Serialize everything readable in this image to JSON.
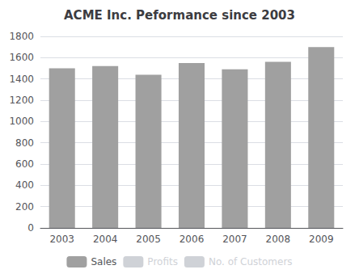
{
  "chart_data": {
    "type": "bar",
    "title": "ACME Inc. Peformance since 2003",
    "categories": [
      "2003",
      "2004",
      "2005",
      "2006",
      "2007",
      "2008",
      "2009"
    ],
    "series": [
      {
        "name": "Sales",
        "color": "#a0a0a0",
        "values": [
          1500,
          1520,
          1440,
          1550,
          1490,
          1560,
          1700
        ]
      },
      {
        "name": "Profits",
        "values": [
          null,
          null,
          null,
          null,
          null,
          null,
          null
        ]
      },
      {
        "name": "No. of Customers",
        "values": [
          null,
          null,
          null,
          null,
          null,
          null,
          null
        ]
      }
    ],
    "ylim": [
      0,
      1800
    ],
    "yticks": [
      0,
      200,
      400,
      600,
      800,
      1000,
      1200,
      1400,
      1600,
      1800
    ],
    "grid": true,
    "legend": "bottom"
  }
}
